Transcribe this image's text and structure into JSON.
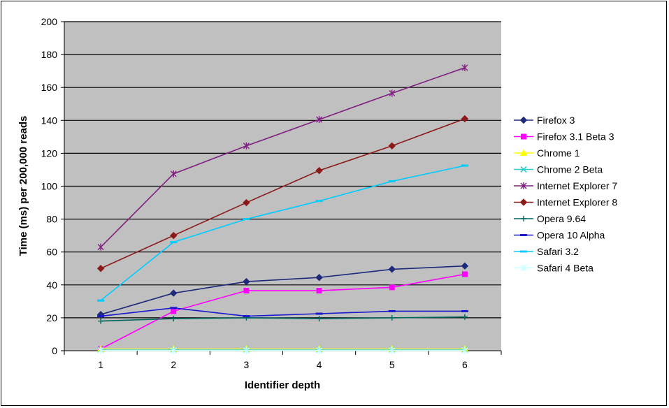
{
  "chart_data": {
    "type": "line",
    "title": "",
    "xlabel": "Identifier depth",
    "ylabel": "Time (ms) per 200,000 reads",
    "x": [
      1,
      2,
      3,
      4,
      5,
      6
    ],
    "ylim": [
      0,
      200
    ],
    "yticks": [
      0,
      20,
      40,
      60,
      80,
      100,
      120,
      140,
      160,
      180,
      200
    ],
    "grid": "horizontal",
    "plot_background": "#c0c0c0",
    "legend_position": "right",
    "series": [
      {
        "name": "Firefox 3",
        "color": "#1f2a7a",
        "marker": "diamond",
        "values": [
          22,
          35,
          42,
          44.5,
          49.5,
          51.5
        ]
      },
      {
        "name": "Firefox 3.1 Beta 3",
        "color": "#ff00ff",
        "marker": "square",
        "values": [
          1,
          24,
          36.5,
          36.5,
          38.5,
          46.5
        ]
      },
      {
        "name": "Chrome 1",
        "color": "#ffff00",
        "marker": "triangle",
        "values": [
          1,
          1,
          1,
          1,
          1,
          1
        ]
      },
      {
        "name": "Chrome 2 Beta",
        "color": "#33cccc",
        "marker": "x",
        "values": [
          0.5,
          0.5,
          0.5,
          0.5,
          0.5,
          0.5
        ]
      },
      {
        "name": "Internet Explorer 7",
        "color": "#7f1f7f",
        "marker": "star",
        "values": [
          63,
          107.5,
          124.5,
          140.5,
          156.5,
          172
        ]
      },
      {
        "name": "Internet Explorer 8",
        "color": "#8b1a1a",
        "marker": "diamond",
        "values": [
          50,
          70,
          90,
          109.5,
          124.5,
          141
        ]
      },
      {
        "name": "Opera 9.64",
        "color": "#00665e",
        "marker": "plus",
        "values": [
          18,
          19.5,
          20,
          19.5,
          20,
          20.5
        ]
      },
      {
        "name": "Opera 10 Alpha",
        "color": "#1a1acc",
        "marker": "dash",
        "values": [
          21,
          26,
          21,
          22.5,
          24,
          24
        ]
      },
      {
        "name": "Safari 3.2",
        "color": "#00ccff",
        "marker": "dash",
        "values": [
          30.5,
          66,
          80,
          91,
          103,
          112.5
        ]
      },
      {
        "name": "Safari 4 Beta",
        "color": "#ccffff",
        "marker": "star",
        "values": [
          0.2,
          0.2,
          0.2,
          0.2,
          0.2,
          0.2
        ]
      }
    ]
  }
}
